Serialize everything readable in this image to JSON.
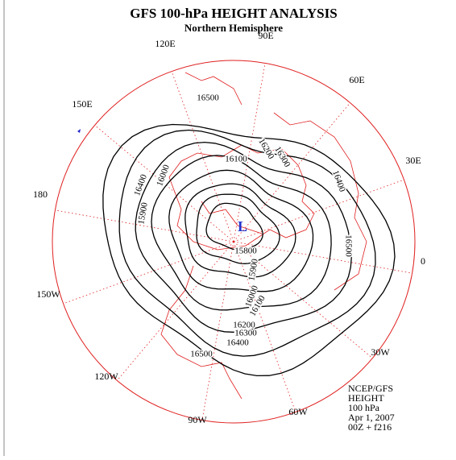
{
  "header": {
    "title": "GFS 100-hPa HEIGHT ANALYSIS",
    "subtitle": "Northern Hemisphere"
  },
  "longitude_labels": [
    "90E",
    "60E",
    "30E",
    "0",
    "30W",
    "60W",
    "90W",
    "120W",
    "150W",
    "180",
    "150E",
    "120E"
  ],
  "low_marker": "L",
  "contour_labels": [
    "16500",
    "16100",
    "16200",
    "16300",
    "16400",
    "16500",
    "16000",
    "16400",
    "15900",
    "16500",
    "16400",
    "16300",
    "16200",
    "16100",
    "16000",
    "15900",
    "15800"
  ],
  "info": [
    "NCEP/GFS",
    "HEIGHT",
    "100 hPa",
    "Apr 1, 2007",
    "00Z + f216"
  ]
}
